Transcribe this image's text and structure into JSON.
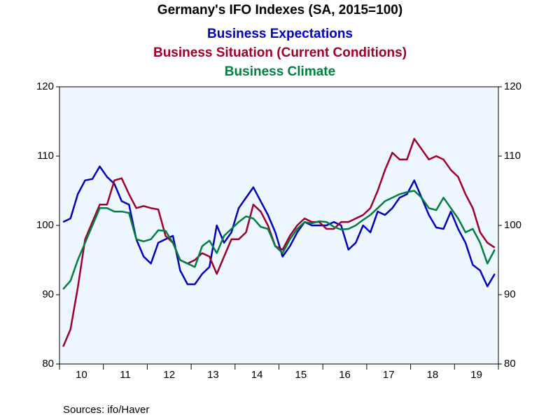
{
  "chart_data": {
    "type": "line",
    "title": "Germany's IFO Indexes (SA, 2015=100)",
    "source": "Sources:  ifo/Haver",
    "categories": [
      null,
      null,
      "10",
      null,
      null,
      null,
      null,
      null,
      "11",
      null,
      null,
      null,
      null,
      null,
      "12",
      null,
      null,
      null,
      null,
      null,
      "13",
      null,
      null,
      null,
      null,
      null,
      "14",
      null,
      null,
      null,
      null,
      null,
      "15",
      null,
      null,
      null,
      null,
      null,
      "16",
      null,
      null,
      null,
      null,
      null,
      "17",
      null,
      null,
      null,
      null,
      null,
      "18",
      null,
      null,
      null,
      null,
      null,
      "19",
      null,
      null,
      null
    ],
    "series": [
      {
        "name": "Business Expectations",
        "color": "#0000c0",
        "values": [
          100.5,
          101,
          104.5,
          106.5,
          106.7,
          108.5,
          107,
          106,
          103.5,
          103,
          98,
          95.5,
          94.5,
          97.5,
          98,
          98.5,
          93.5,
          91.5,
          91.5,
          93,
          94,
          100,
          97.5,
          99,
          102.5,
          104,
          105.5,
          103.5,
          101.5,
          99,
          95.5,
          97,
          99,
          100.5,
          100,
          100,
          100,
          100.5,
          100,
          96.5,
          97.5,
          100,
          99,
          102,
          101.5,
          102.5,
          104,
          104.5,
          106.5,
          104,
          101.5,
          99.7,
          99.5,
          102,
          99.5,
          97.5,
          94.3,
          93.5,
          91.2,
          93
        ]
      },
      {
        "name": "Business Situation (Current Conditions)",
        "color": "#a0002a",
        "values": [
          82.5,
          85,
          91,
          98,
          100.5,
          103,
          103,
          106.5,
          106.8,
          104.5,
          102.5,
          102.8,
          102.5,
          102.3,
          98.5,
          97.5,
          95,
          94.5,
          95,
          96,
          95.5,
          93,
          95.5,
          98,
          98,
          99,
          103,
          102,
          100,
          97,
          96.5,
          98.5,
          100,
          101,
          100.5,
          100.5,
          99.5,
          99.5,
          100.5,
          100.5,
          101,
          101.5,
          102.5,
          105,
          108,
          110.5,
          109.5,
          109.5,
          112.5,
          111,
          109.5,
          110,
          109.5,
          108,
          107,
          104.5,
          102.5,
          99,
          97.5,
          96.8
        ]
      },
      {
        "name": "Business Climate",
        "color": "#008040",
        "values": [
          90.8,
          92,
          95,
          97.5,
          100,
          102.5,
          102.5,
          102,
          102,
          101.8,
          98,
          97.7,
          98,
          99.3,
          99.2,
          97.5,
          95,
          94.5,
          94,
          97,
          97.8,
          96,
          98.5,
          99.5,
          100.5,
          101.3,
          101,
          99.8,
          99.5,
          97,
          96,
          98,
          99.5,
          100.5,
          100.3,
          100.6,
          100.5,
          99.8,
          99.4,
          99.5,
          100,
          100.8,
          101.5,
          102.5,
          103.5,
          104,
          104.5,
          104.8,
          105,
          104,
          102.5,
          102.2,
          104,
          102.5,
          101,
          99,
          99.5,
          97.5,
          94.5,
          96.5
        ]
      }
    ],
    "ylim": [
      80,
      120
    ],
    "yticks": [
      80,
      90,
      100,
      110,
      120
    ]
  }
}
